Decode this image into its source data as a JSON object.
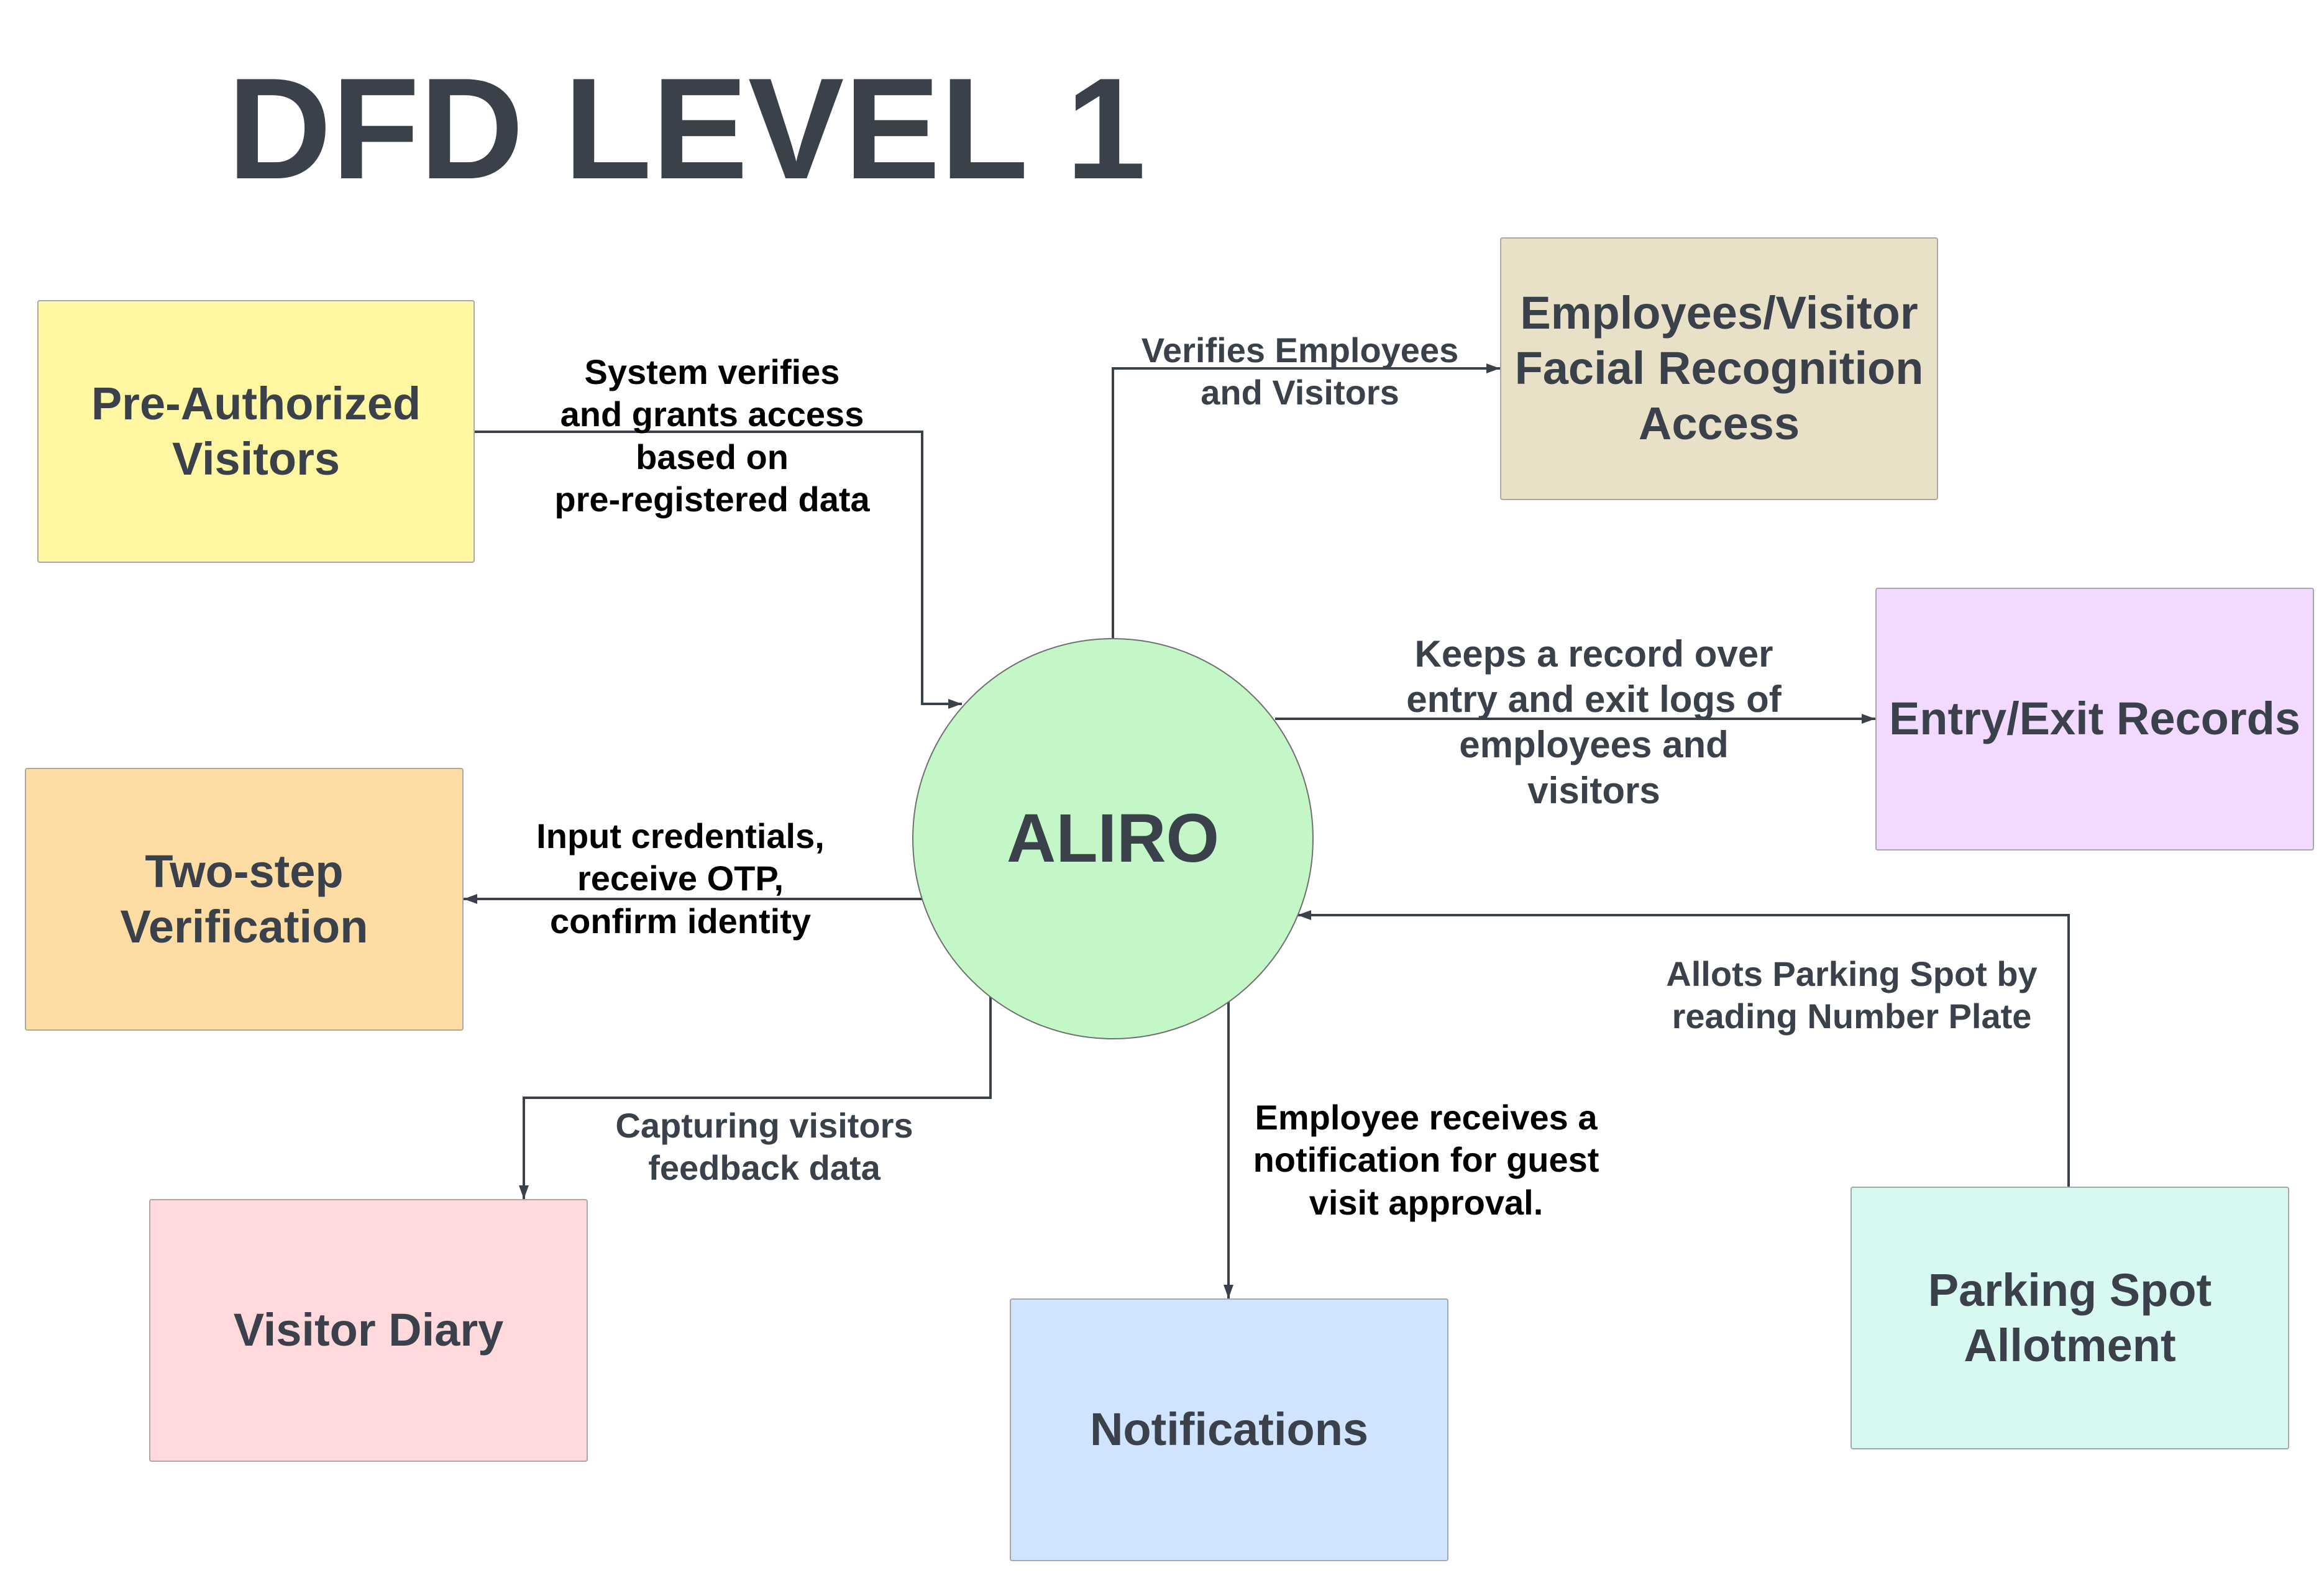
{
  "title": "DFD LEVEL 1",
  "center": {
    "label": "ALIRO",
    "color": "#c3f7c8"
  },
  "nodes": {
    "pre_authorized": {
      "label": "Pre-Authorized\nVisitors",
      "color": "#fff7a1"
    },
    "facial_recognition": {
      "label": "Employees/Visitor\nFacial Recognition\nAccess",
      "color": "#e8e1c8"
    },
    "entry_exit": {
      "label": "Entry/Exit Records",
      "color": "#f2d9ff"
    },
    "two_step": {
      "label": "Two-step\nVerification",
      "color": "#fedda5"
    },
    "visitor_diary": {
      "label": "Visitor Diary",
      "color": "#ffd9db"
    },
    "notifications": {
      "label": "Notifications",
      "color": "#d1e4ff"
    },
    "parking": {
      "label": "Parking Spot\nAllotment",
      "color": "#d8f9f2"
    }
  },
  "flows": {
    "pre_authorized": "System verifies\nand grants access\nbased on\npre-registered data",
    "facial_recognition": "Verifies Employees\nand Visitors",
    "entry_exit": "Keeps a record over\nentry and exit logs of\nemployees and\nvisitors",
    "two_step": "Input credentials,\nreceive OTP,\nconfirm identity",
    "visitor_diary": "Capturing visitors\nfeedback data",
    "notifications": "Employee receives a\nnotification for guest\nvisit approval.",
    "parking": "Allots Parking Spot by\nreading Number Plate"
  },
  "colors": {
    "line": "#3a414a",
    "text_dark": "#000000",
    "text_slate": "#3a414a"
  }
}
